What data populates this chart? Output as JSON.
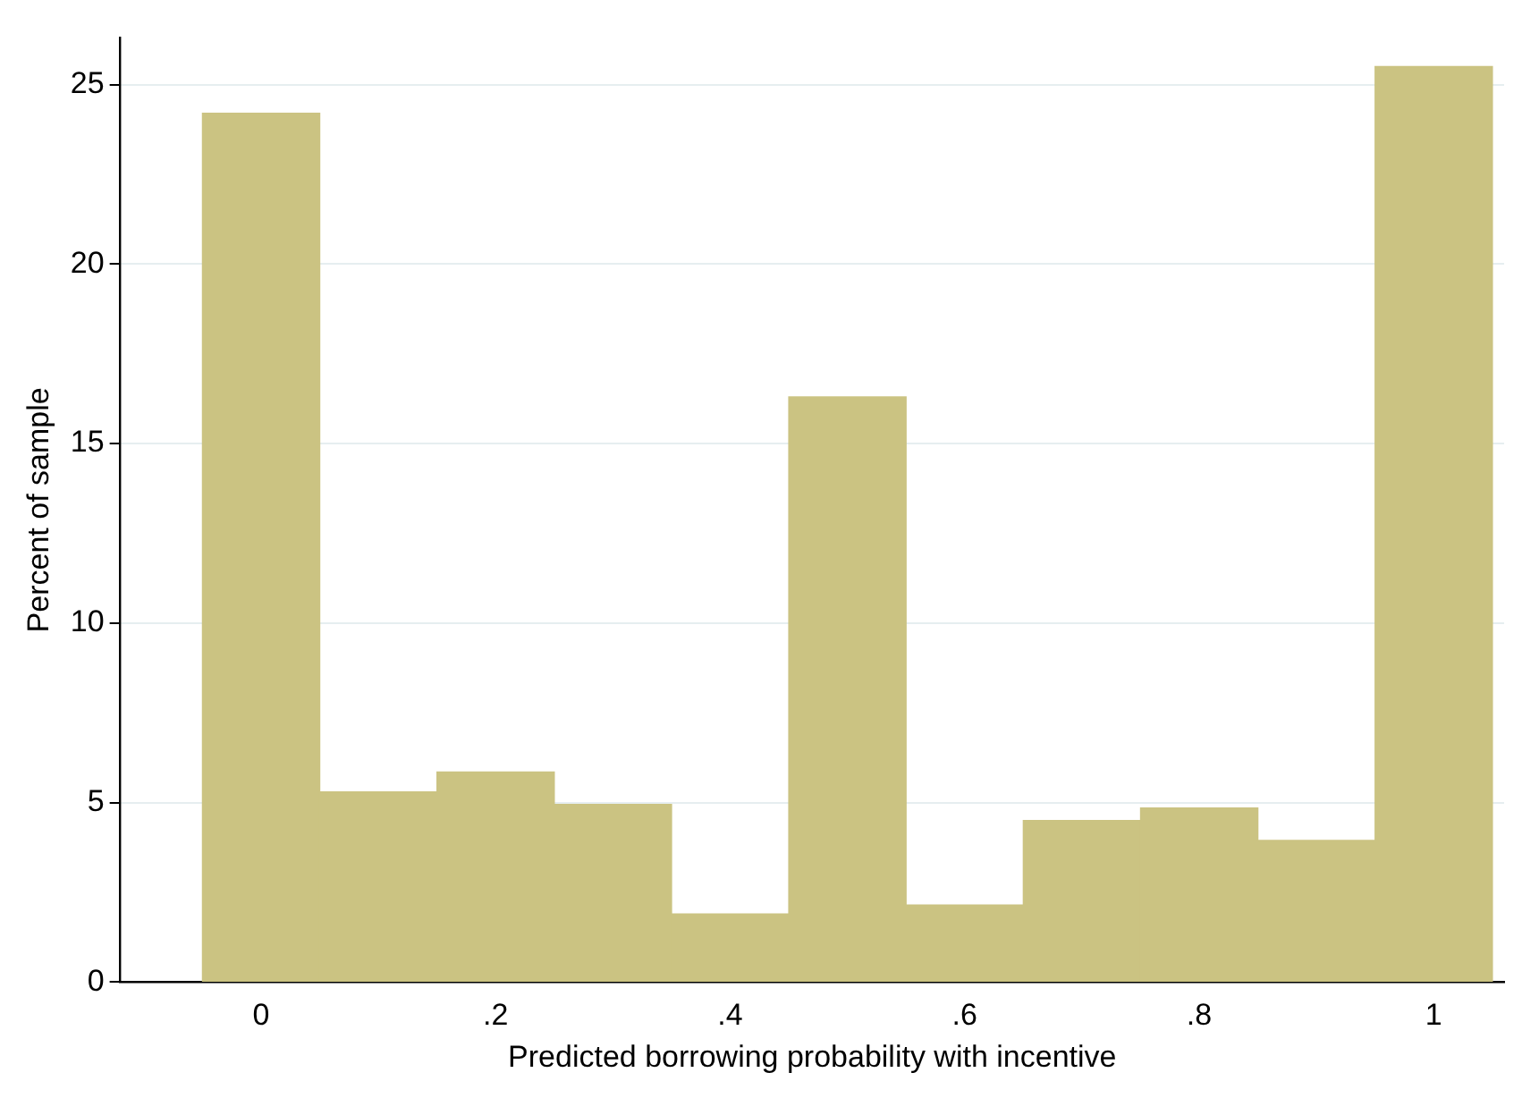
{
  "chart_data": {
    "type": "histogram",
    "xlabel": "Predicted borrowing probability with incentive",
    "ylabel": "Percent of sample",
    "bins": [
      -0.05,
      0.05,
      0.15,
      0.25,
      0.35,
      0.45,
      0.55,
      0.65,
      0.75,
      0.85,
      0.95,
      1.05
    ],
    "values": [
      24.2,
      5.3,
      5.85,
      4.95,
      1.9,
      16.3,
      2.15,
      4.5,
      4.85,
      3.95,
      25.5
    ],
    "color": "#cbc382",
    "xlim": [
      -0.12,
      1.06
    ],
    "ylim": [
      0,
      26.3
    ],
    "xticks": [
      {
        "value": 0,
        "label": "0"
      },
      {
        "value": 0.2,
        "label": ".2"
      },
      {
        "value": 0.4,
        "label": ".4"
      },
      {
        "value": 0.6,
        "label": ".6"
      },
      {
        "value": 0.8,
        "label": ".8"
      },
      {
        "value": 1,
        "label": "1"
      }
    ],
    "yticks": [
      0,
      5,
      10,
      15,
      20,
      25
    ],
    "grid": "y"
  }
}
